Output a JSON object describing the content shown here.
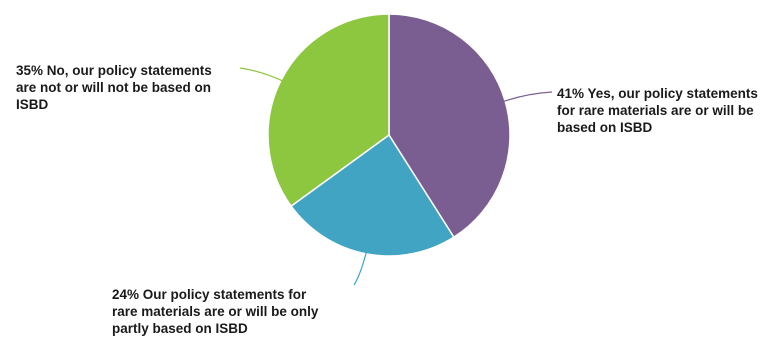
{
  "chart_data": {
    "type": "pie",
    "slices": [
      {
        "value": 41,
        "label_lines": [
          "41% Yes, our policy statements",
          "for rare materials are or will be",
          "based on ISBD"
        ],
        "color": "#7b5e91"
      },
      {
        "value": 24,
        "label_lines": [
          "24% Our policy statements for",
          "rare materials are or will be only",
          "partly based on ISBD"
        ],
        "color": "#41a4c3"
      },
      {
        "value": 35,
        "label_lines": [
          "35% No, our policy statements",
          "are not or will not be based on",
          "ISBD"
        ],
        "color": "#8dc63f"
      }
    ],
    "start_angle_deg": 0,
    "direction": "clockwise",
    "slice_border_color": "#ffffff"
  }
}
